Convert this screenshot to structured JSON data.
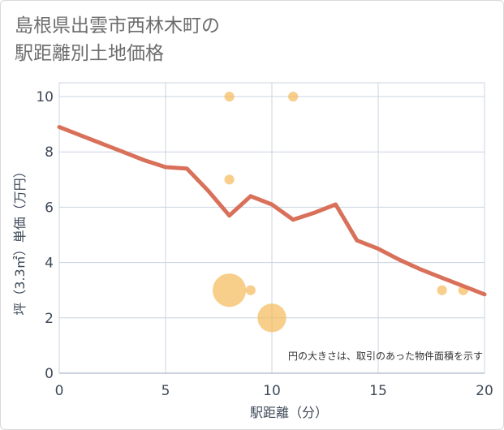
{
  "title_lines": [
    "島根県出雲市西林木町の",
    "駅距離別土地価格"
  ],
  "chart_data": {
    "type": "scatter",
    "title": "島根県出雲市西林木町の駅距離別土地価格",
    "xlabel": "駅距離（分）",
    "ylabel": "坪（3.3㎡）単価（万円）",
    "xlim": [
      0,
      20
    ],
    "ylim": [
      0,
      10.5
    ],
    "x_ticks": [
      0,
      5,
      10,
      15,
      20
    ],
    "y_ticks": [
      0,
      2,
      4,
      6,
      8,
      10
    ],
    "grid": true,
    "note": "円の大きさは、取引のあった物件面積を示す",
    "points": [
      {
        "x": 8,
        "y": 10,
        "size": 1
      },
      {
        "x": 11,
        "y": 10,
        "size": 1
      },
      {
        "x": 8,
        "y": 7,
        "size": 1
      },
      {
        "x": 8,
        "y": 3,
        "size": 6
      },
      {
        "x": 9,
        "y": 3,
        "size": 1
      },
      {
        "x": 10,
        "y": 2,
        "size": 5
      },
      {
        "x": 18,
        "y": 3,
        "size": 1
      },
      {
        "x": 19,
        "y": 3,
        "size": 1
      }
    ],
    "trend": {
      "name": "trend",
      "x": [
        0,
        1,
        2,
        3,
        4,
        5,
        6,
        7,
        8,
        9,
        10,
        11,
        12,
        13,
        14,
        15,
        16,
        17,
        18,
        19,
        20
      ],
      "y": [
        8.9,
        8.6,
        8.3,
        8.0,
        7.7,
        7.45,
        7.4,
        6.6,
        5.7,
        6.4,
        6.1,
        5.55,
        5.8,
        6.1,
        4.8,
        4.5,
        4.1,
        3.75,
        3.45,
        3.15,
        2.85
      ]
    },
    "colors": {
      "point": "#f5b95a",
      "line": "#d9705a",
      "grid": "#c8d4e2",
      "axis": "#3e4a59"
    }
  }
}
